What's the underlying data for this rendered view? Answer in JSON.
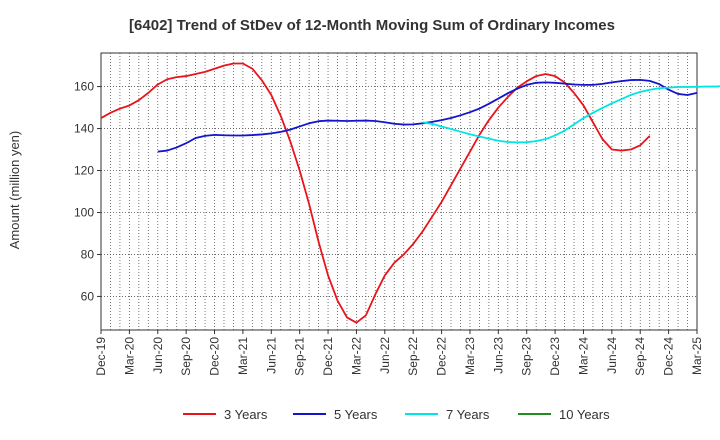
{
  "chart_data": {
    "type": "line",
    "title": "[6402]  Trend of StDev of 12-Month Moving Sum of Ordinary Incomes",
    "ylabel": "Amount (million yen)",
    "xlabel": "",
    "ylim": [
      44,
      176
    ],
    "yticks": [
      60,
      80,
      100,
      120,
      140,
      160
    ],
    "x_labels": [
      "Dec-19",
      "Mar-20",
      "Jun-20",
      "Sep-20",
      "Dec-20",
      "Mar-21",
      "Jun-21",
      "Sep-21",
      "Dec-21",
      "Mar-22",
      "Jun-22",
      "Sep-22",
      "Dec-22",
      "Mar-23",
      "Jun-23",
      "Sep-23",
      "Dec-23",
      "Mar-24",
      "Jun-24",
      "Sep-24",
      "Dec-24",
      "Mar-25"
    ],
    "grid": true,
    "legend_position": "bottom",
    "series": [
      {
        "name": "3 Years",
        "color": "#e8141c",
        "start": 0,
        "values": [
          145,
          147.5,
          149.5,
          151,
          153.5,
          157,
          161,
          163.5,
          164.5,
          165,
          166,
          167,
          168.5,
          170,
          171,
          171,
          168.5,
          163,
          156,
          146,
          134,
          120,
          104,
          86,
          70,
          58,
          50,
          47.5,
          51,
          61,
          70,
          76,
          80,
          85,
          91,
          98,
          105,
          113,
          121,
          129,
          137,
          144,
          150,
          155,
          159.5,
          162.5,
          165,
          166,
          165,
          162,
          157,
          151,
          143,
          135,
          130,
          129.5,
          130,
          132,
          136.5
        ]
      },
      {
        "name": "5 Years",
        "color": "#1414cc",
        "start": 6,
        "values": [
          129,
          129.5,
          131,
          133,
          135.5,
          136.5,
          137,
          136.8,
          136.7,
          136.7,
          136.9,
          137.2,
          137.7,
          138.4,
          139.5,
          141,
          142.5,
          143.5,
          143.8,
          143.7,
          143.6,
          143.7,
          143.8,
          143.6,
          143,
          142.3,
          141.9,
          142,
          142.5,
          143.2,
          144,
          145,
          146.3,
          147.8,
          149.5,
          151.8,
          154.3,
          156.8,
          159,
          160.8,
          161.8,
          162,
          161.8,
          161.4,
          161,
          160.8,
          160.8,
          161.3,
          162,
          162.6,
          163.1,
          163.2,
          162.7,
          161.2,
          158.5,
          156.5,
          156,
          157
        ]
      },
      {
        "name": "7 Years",
        "color": "#00e5e5",
        "start": 34,
        "values": [
          143,
          142.2,
          141,
          139.8,
          138.5,
          137.3,
          136.2,
          135.2,
          134.2,
          133.6,
          133.4,
          133.5,
          134,
          135,
          136.7,
          139,
          142,
          145,
          147.5,
          149.8,
          152,
          154,
          156,
          157.5,
          158.5,
          159.2,
          159.5,
          159.8,
          159.8,
          159.9,
          160,
          160,
          160.4,
          161.5,
          163
        ]
      }
    ]
  }
}
